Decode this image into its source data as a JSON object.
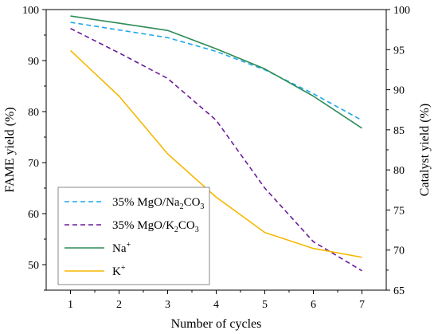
{
  "chart_data": {
    "type": "line",
    "x": [
      1,
      2,
      3,
      4,
      5,
      6,
      7
    ],
    "xlabel": "Number of cycles",
    "ylabel_left": "FAME yield (%)",
    "ylabel_right": "Catalyst yield (%)",
    "xlim": [
      0.5,
      7.5
    ],
    "ylim_left": [
      45,
      100
    ],
    "ylim_right": [
      65,
      100
    ],
    "xticks": [
      "1",
      "2",
      "3",
      "4",
      "5",
      "6",
      "7"
    ],
    "yticks_left": [
      "50",
      "60",
      "70",
      "80",
      "90",
      "100"
    ],
    "yticks_right": [
      "65",
      "70",
      "75",
      "80",
      "85",
      "90",
      "95",
      "100"
    ],
    "grid": false,
    "legend_position": "bottom-left",
    "series": [
      {
        "name": "35% MgO/Na2CO3",
        "label_parts": [
          "35% MgO/Na",
          "2",
          "CO",
          "3"
        ],
        "axis": "left",
        "style": "dashed",
        "color": "#1ea8e8",
        "values": [
          97.5,
          96.0,
          94.5,
          91.8,
          88.2,
          83.5,
          78.3
        ]
      },
      {
        "name": "35% MgO/K2CO3",
        "label_parts": [
          "35% MgO/K",
          "2",
          "CO",
          "3"
        ],
        "axis": "left",
        "style": "dashed",
        "color": "#6a1b9a",
        "values": [
          96.3,
          91.5,
          86.5,
          78.3,
          65.0,
          54.5,
          48.8
        ]
      },
      {
        "name": "Na+",
        "label_parts": [
          "Na",
          "+"
        ],
        "axis": "right",
        "style": "solid",
        "color": "#2e8b57",
        "values": [
          99.2,
          98.3,
          97.4,
          95.1,
          92.6,
          89.2,
          85.2
        ]
      },
      {
        "name": "K+",
        "label_parts": [
          "K",
          "+"
        ],
        "axis": "right",
        "style": "solid",
        "color": "#f5b800",
        "values": [
          94.9,
          89.2,
          82.0,
          76.6,
          72.2,
          70.2,
          69.1
        ]
      }
    ]
  }
}
